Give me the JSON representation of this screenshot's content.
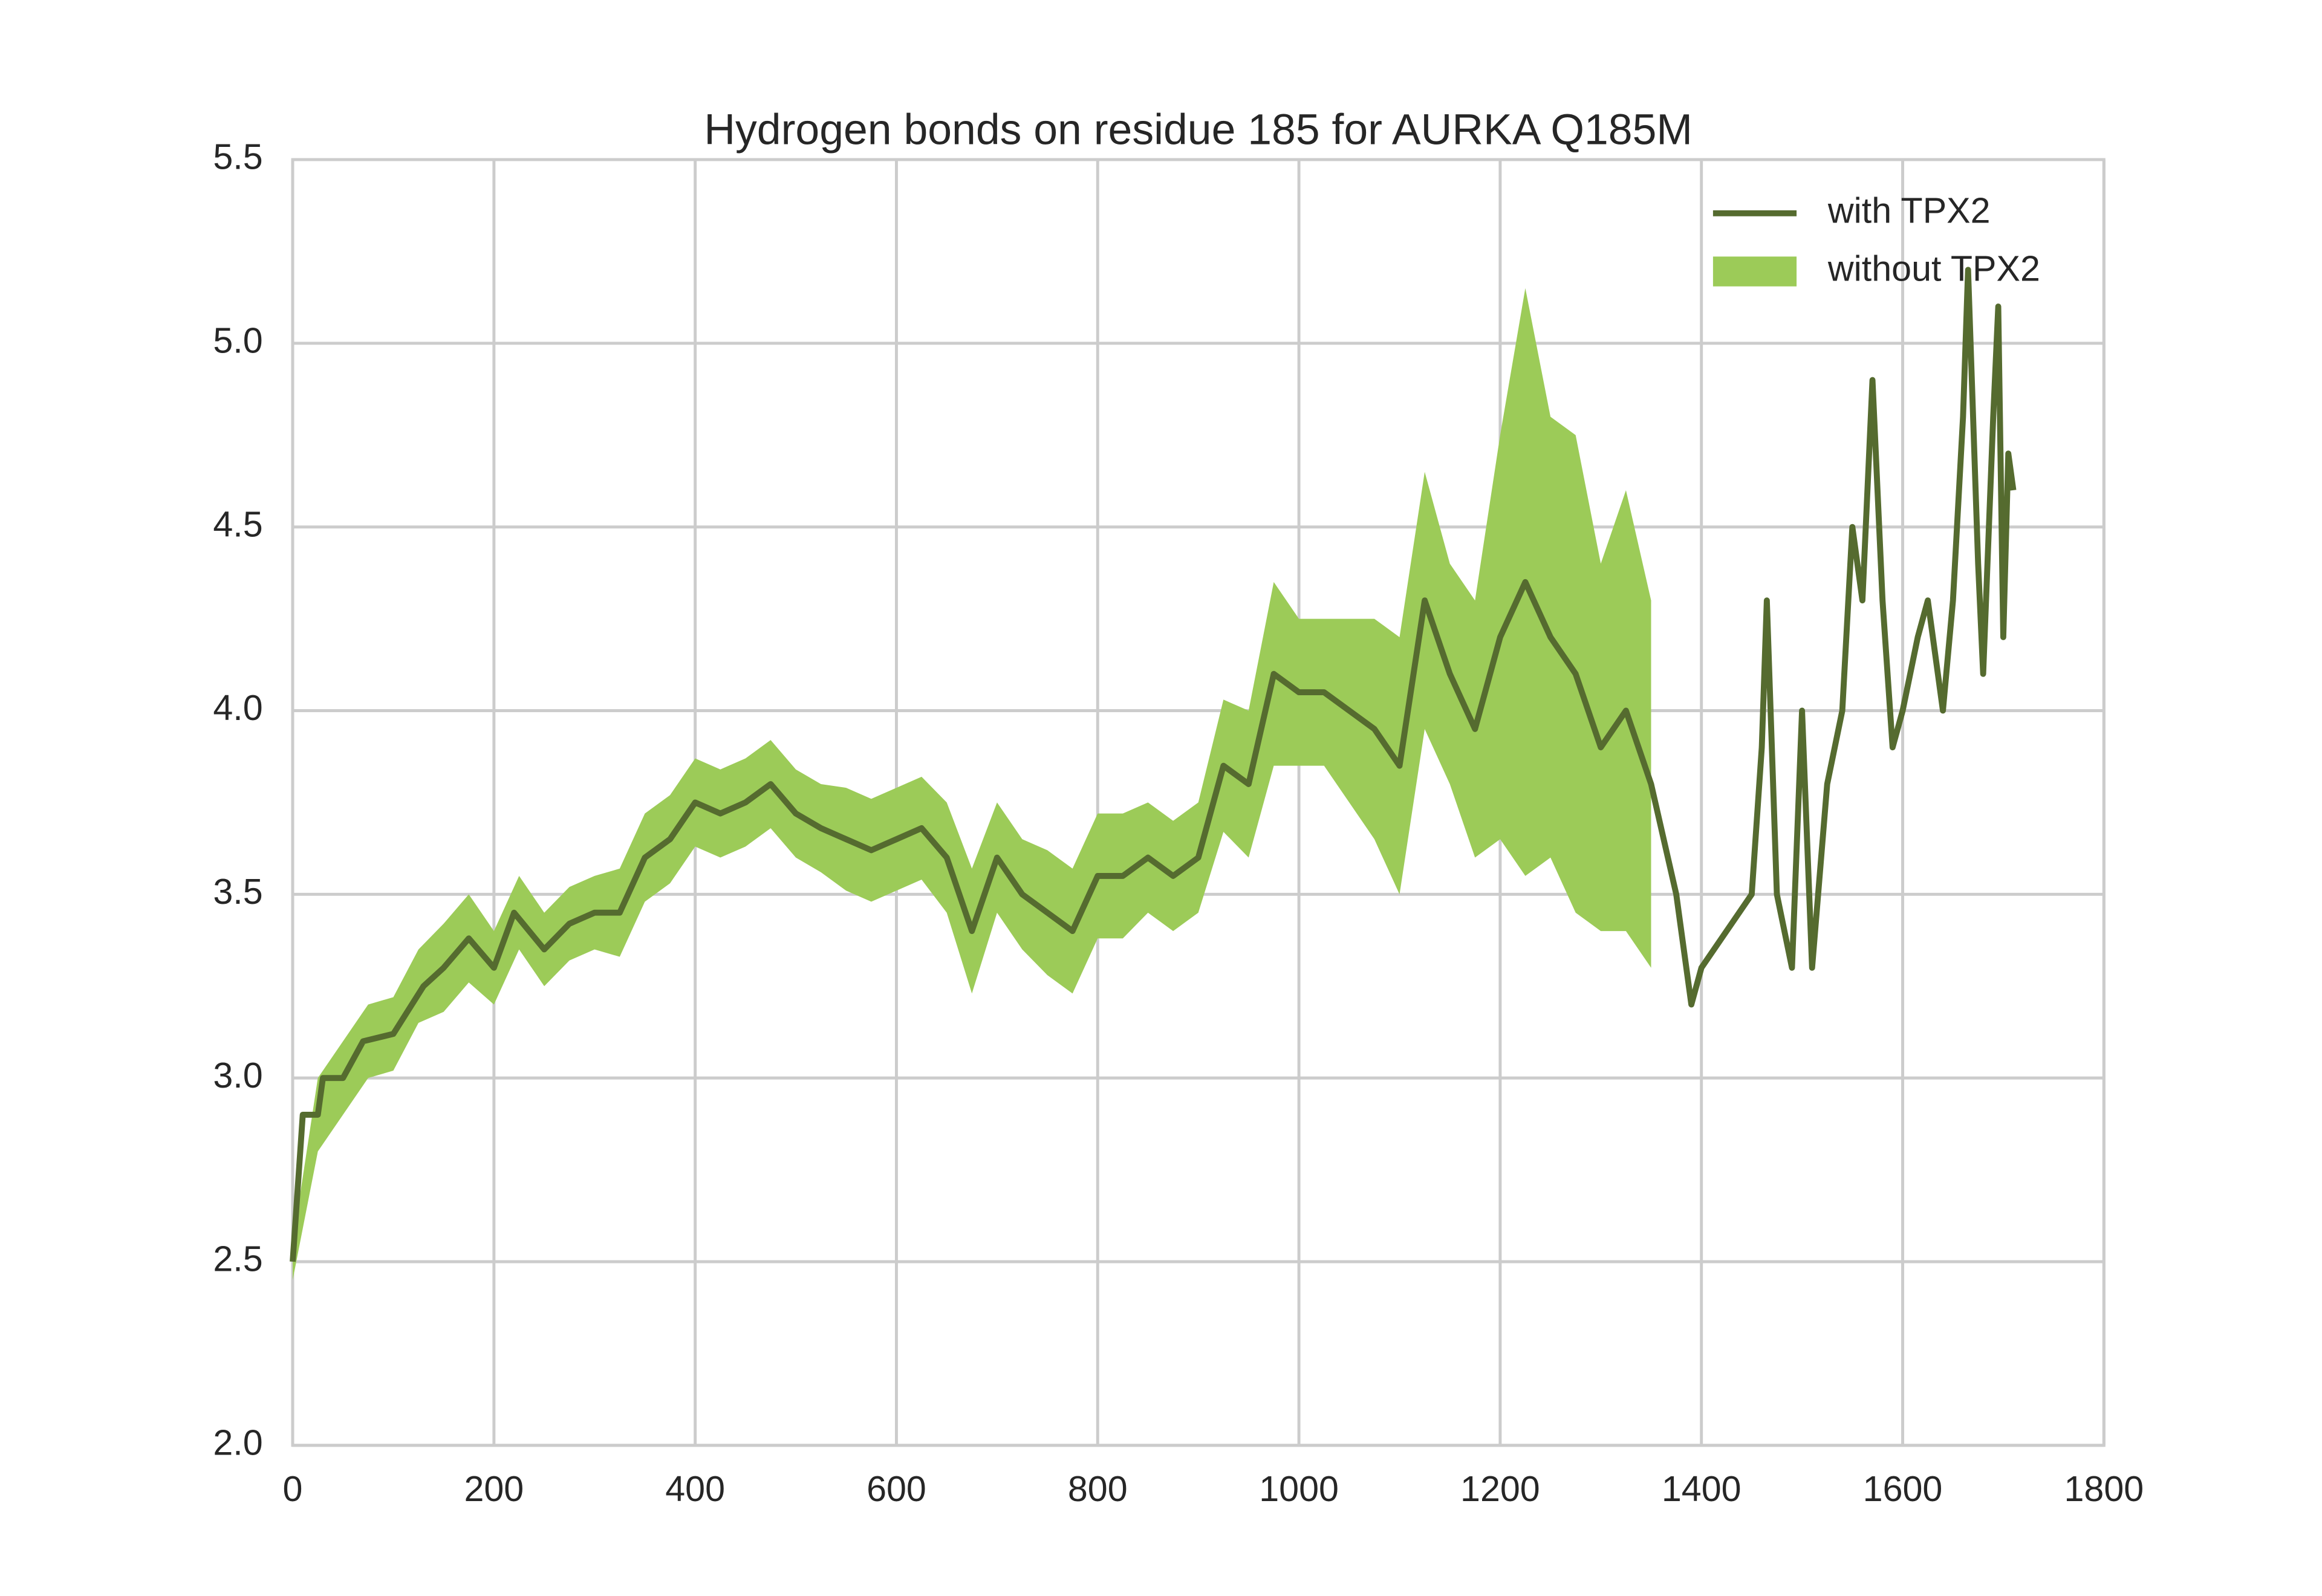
{
  "chart_data": {
    "type": "line",
    "title": "Hydrogen bonds on residue 185 for AURKA Q185M",
    "xlim": [
      0,
      1800
    ],
    "ylim": [
      2.0,
      5.5
    ],
    "xticks": [
      0,
      200,
      400,
      600,
      800,
      1000,
      1200,
      1400,
      1600,
      1800
    ],
    "yticks": [
      {
        "value": 2.0,
        "label": "2.0"
      },
      {
        "value": 2.5,
        "label": "2.5"
      },
      {
        "value": 3.0,
        "label": "3.0"
      },
      {
        "value": 3.5,
        "label": "3.5"
      },
      {
        "value": 4.0,
        "label": "4.0"
      },
      {
        "value": 4.5,
        "label": "4.5"
      },
      {
        "value": 5.0,
        "label": "5.0"
      },
      {
        "value": 5.5,
        "label": "5.5"
      }
    ],
    "grid": true,
    "legend": "upper right",
    "series": [
      {
        "name": "with TPX2",
        "color": "#556b2f",
        "x": [
          0,
          10,
          25,
          30,
          50,
          70,
          100,
          130,
          150,
          175,
          200,
          220,
          250,
          275,
          300,
          325,
          350,
          375,
          400,
          425,
          450,
          475,
          500,
          525,
          550,
          575,
          600,
          625,
          650,
          675,
          700,
          725,
          750,
          775,
          800,
          825,
          850,
          875,
          900,
          925,
          950,
          975,
          1000,
          1025,
          1050,
          1075,
          1100,
          1125,
          1150,
          1175,
          1200,
          1225,
          1250,
          1275,
          1300,
          1325,
          1350,
          1375,
          1390,
          1400,
          1425,
          1450,
          1460,
          1465,
          1475,
          1490,
          1500,
          1510,
          1525,
          1540,
          1550,
          1560,
          1570,
          1580,
          1590,
          1600,
          1615,
          1625,
          1640,
          1650,
          1660,
          1665,
          1675,
          1680,
          1690,
          1695,
          1700,
          1705,
          1710
        ],
        "values": [
          2.5,
          2.9,
          2.9,
          3.0,
          3.0,
          3.1,
          3.12,
          3.25,
          3.3,
          3.38,
          3.3,
          3.45,
          3.35,
          3.42,
          3.45,
          3.45,
          3.6,
          3.65,
          3.75,
          3.72,
          3.75,
          3.8,
          3.72,
          3.68,
          3.65,
          3.62,
          3.65,
          3.68,
          3.6,
          3.4,
          3.6,
          3.5,
          3.45,
          3.4,
          3.55,
          3.55,
          3.6,
          3.55,
          3.6,
          3.85,
          3.8,
          4.1,
          4.05,
          4.05,
          4.0,
          3.95,
          3.85,
          4.3,
          4.1,
          3.95,
          4.2,
          4.35,
          4.2,
          4.1,
          3.9,
          4.0,
          3.8,
          3.5,
          3.2,
          3.3,
          3.4,
          3.5,
          3.9,
          4.3,
          3.5,
          3.3,
          4.0,
          3.3,
          3.8,
          4.0,
          4.5,
          4.3,
          4.9,
          4.3,
          3.9,
          4.0,
          4.2,
          4.3,
          4.0,
          4.3,
          4.8,
          5.2,
          4.4,
          4.1,
          4.8,
          5.1,
          4.2,
          4.7,
          4.6
        ]
      },
      {
        "name": "without TPX2",
        "color": "#9ccb58",
        "x": [
          0,
          25,
          50,
          75,
          100,
          125,
          150,
          175,
          200,
          225,
          250,
          275,
          300,
          325,
          350,
          375,
          400,
          425,
          450,
          475,
          500,
          525,
          550,
          575,
          600,
          625,
          650,
          675,
          700,
          725,
          750,
          775,
          800,
          825,
          850,
          875,
          900,
          925,
          950,
          975,
          1000,
          1025,
          1050,
          1075,
          1100,
          1125,
          1150,
          1175,
          1200,
          1225,
          1250,
          1275,
          1300,
          1325,
          1350
        ],
        "lower": [
          2.45,
          2.8,
          2.9,
          3.0,
          3.02,
          3.15,
          3.18,
          3.26,
          3.2,
          3.35,
          3.25,
          3.32,
          3.35,
          3.33,
          3.48,
          3.53,
          3.63,
          3.6,
          3.63,
          3.68,
          3.6,
          3.56,
          3.51,
          3.48,
          3.51,
          3.54,
          3.45,
          3.23,
          3.45,
          3.35,
          3.28,
          3.23,
          3.38,
          3.38,
          3.45,
          3.4,
          3.45,
          3.67,
          3.6,
          3.85,
          3.85,
          3.85,
          3.75,
          3.65,
          3.5,
          3.95,
          3.8,
          3.6,
          3.65,
          3.55,
          3.6,
          3.45,
          3.4,
          3.4,
          3.3
        ],
        "upper": [
          2.55,
          3.0,
          3.1,
          3.2,
          3.22,
          3.35,
          3.42,
          3.5,
          3.4,
          3.55,
          3.45,
          3.52,
          3.55,
          3.57,
          3.72,
          3.77,
          3.87,
          3.84,
          3.87,
          3.92,
          3.84,
          3.8,
          3.79,
          3.76,
          3.79,
          3.82,
          3.75,
          3.57,
          3.75,
          3.65,
          3.62,
          3.57,
          3.72,
          3.72,
          3.75,
          3.7,
          3.75,
          4.03,
          4.0,
          4.35,
          4.25,
          4.25,
          4.25,
          4.25,
          4.2,
          4.65,
          4.4,
          4.3,
          4.75,
          5.15,
          4.8,
          4.75,
          4.4,
          4.6,
          4.3
        ]
      }
    ]
  }
}
